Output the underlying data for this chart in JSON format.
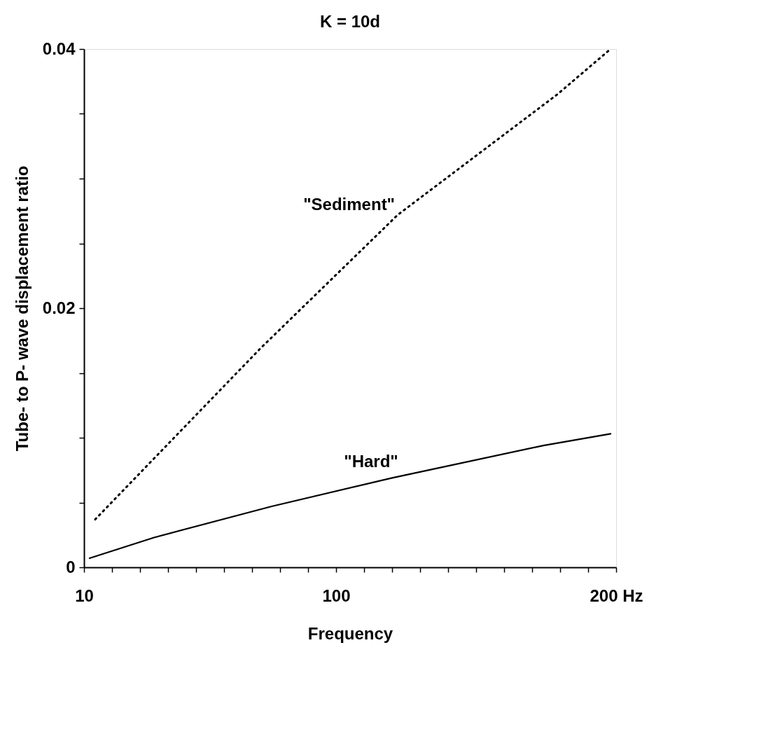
{
  "chart_data": {
    "type": "line",
    "title": "K = 10d",
    "xlabel": "Frequency",
    "ylabel": "Tube- to P-  wave  displacement ratio",
    "xlim": [
      10,
      200
    ],
    "xticks": [
      10,
      {
        "value": 20,
        "label": null
      },
      {
        "value": 30,
        "label": null
      },
      {
        "value": 40,
        "label": null
      },
      {
        "value": 50,
        "label": null
      },
      {
        "value": 60,
        "label": null
      },
      {
        "value": 70,
        "label": null
      },
      {
        "value": 80,
        "label": null
      },
      {
        "value": 90,
        "label": null
      },
      100,
      {
        "value": 110,
        "label": null
      },
      {
        "value": 120,
        "label": null
      },
      {
        "value": 130,
        "label": null
      },
      {
        "value": 140,
        "label": null
      },
      {
        "value": 150,
        "label": null
      },
      {
        "value": 160,
        "label": null
      },
      {
        "value": 170,
        "label": null
      },
      {
        "value": 180,
        "label": null
      },
      {
        "value": 190,
        "label": null
      },
      {
        "value": 200,
        "label": "200 Hz"
      }
    ],
    "ylim": [
      0,
      0.04
    ],
    "yticks": [
      0,
      {
        "value": 0.005,
        "label": null
      },
      {
        "value": 0.01,
        "label": null
      },
      {
        "value": 0.015,
        "label": null
      },
      0.02,
      {
        "value": 0.025,
        "label": null
      },
      {
        "value": 0.03,
        "label": null
      },
      {
        "value": 0.035,
        "label": null
      },
      0.04
    ],
    "grid": false,
    "marker": "none",
    "series": [
      {
        "name": "\"Sediment\"",
        "color": "#000000",
        "line_style": "dotted",
        "x": [
          14,
          73,
          122,
          179,
          198
        ],
        "values": [
          0.0037,
          0.0169,
          0.0272,
          0.0365,
          0.04
        ]
      },
      {
        "name": "\"Hard\"",
        "color": "#000000",
        "line_style": "solid",
        "x": [
          12,
          35,
          77,
          120,
          174,
          198
        ],
        "values": [
          0.0007,
          0.0023,
          0.0047,
          0.0069,
          0.0094,
          0.0103
        ]
      }
    ]
  }
}
